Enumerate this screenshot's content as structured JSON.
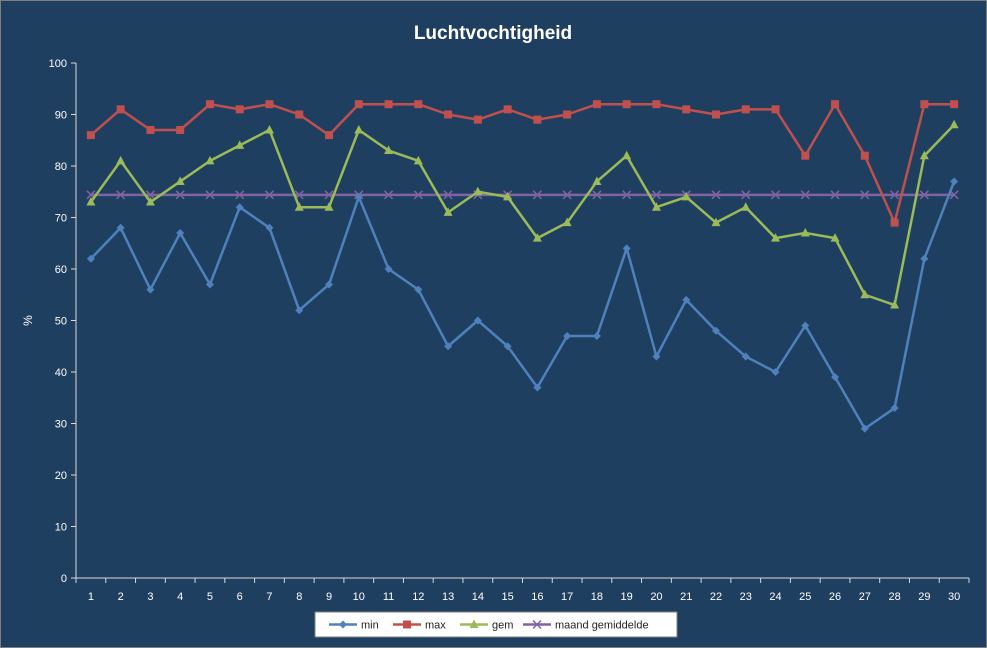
{
  "chart_data": {
    "type": "line",
    "title": "Luchtvochtigheid",
    "xlabel": "",
    "ylabel": "%",
    "ylim": [
      0,
      100
    ],
    "yticks": [
      0,
      10,
      20,
      30,
      40,
      50,
      60,
      70,
      80,
      90,
      100
    ],
    "grid": false,
    "legend_position": "bottom",
    "background_color": "#1f3f61",
    "categories": [
      1,
      2,
      3,
      4,
      5,
      6,
      7,
      8,
      9,
      10,
      11,
      12,
      13,
      14,
      15,
      16,
      17,
      18,
      19,
      20,
      21,
      22,
      23,
      24,
      25,
      26,
      27,
      28,
      29,
      30
    ],
    "series": [
      {
        "name": "min",
        "color": "#4f81bd",
        "marker": "diamond",
        "values": [
          62,
          68,
          56,
          67,
          57,
          72,
          68,
          52,
          57,
          74,
          60,
          56,
          45,
          50,
          45,
          37,
          47,
          47,
          64,
          43,
          54,
          48,
          43,
          40,
          49,
          39,
          29,
          33,
          62,
          77
        ]
      },
      {
        "name": "max",
        "color": "#c0504d",
        "marker": "square",
        "values": [
          86,
          91,
          87,
          87,
          92,
          91,
          92,
          90,
          86,
          92,
          92,
          92,
          90,
          89,
          91,
          89,
          90,
          92,
          92,
          92,
          91,
          90,
          91,
          91,
          82,
          92,
          82,
          69,
          92,
          92
        ]
      },
      {
        "name": "gem",
        "color": "#9bbb59",
        "marker": "triangle",
        "values": [
          73,
          81,
          73,
          77,
          81,
          84,
          87,
          72,
          72,
          87,
          83,
          81,
          71,
          75,
          74,
          66,
          69,
          77,
          82,
          72,
          74,
          69,
          72,
          66,
          67,
          66,
          55,
          53,
          82,
          88
        ]
      },
      {
        "name": "maand gemiddelde",
        "color": "#8064a2",
        "marker": "x",
        "values": [
          74.4,
          74.4,
          74.4,
          74.4,
          74.4,
          74.4,
          74.4,
          74.4,
          74.4,
          74.4,
          74.4,
          74.4,
          74.4,
          74.4,
          74.4,
          74.4,
          74.4,
          74.4,
          74.4,
          74.4,
          74.4,
          74.4,
          74.4,
          74.4,
          74.4,
          74.4,
          74.4,
          74.4,
          74.4,
          74.4
        ]
      }
    ]
  }
}
